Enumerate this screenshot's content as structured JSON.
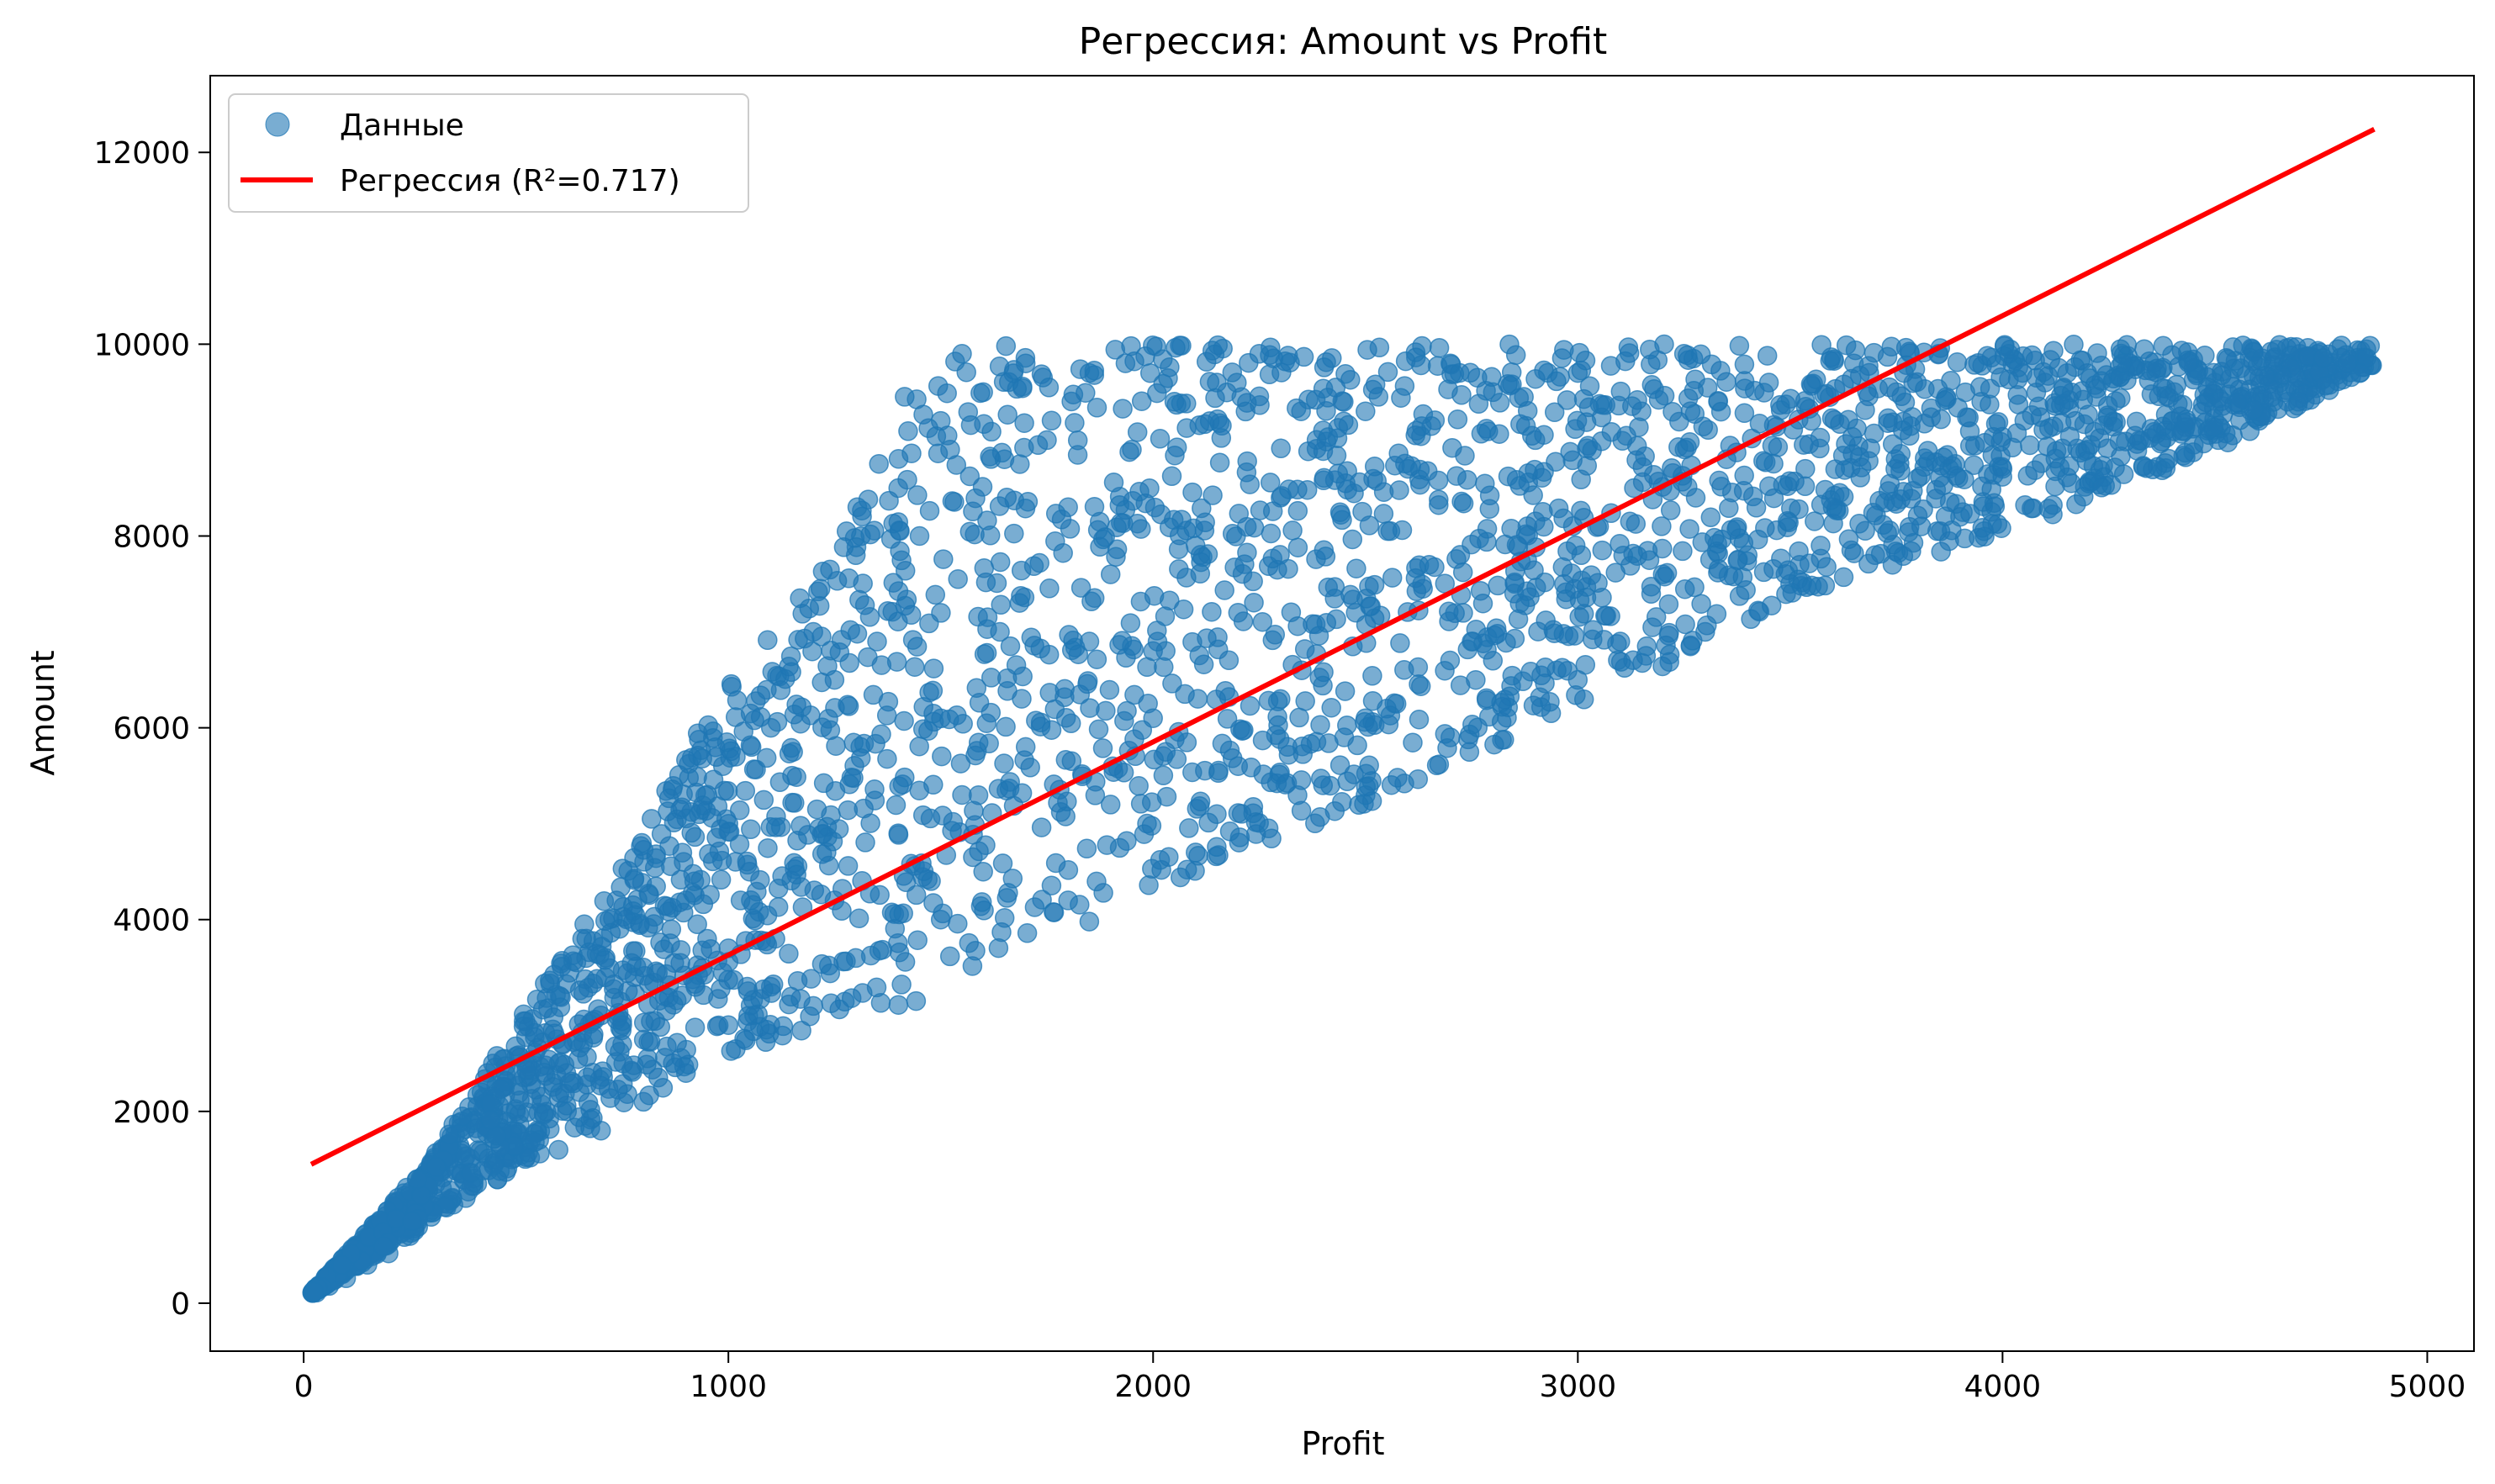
{
  "chart_data": {
    "type": "scatter",
    "title": "Регрессия: Amount vs Profit",
    "xlabel": "Profit",
    "ylabel": "Amount",
    "xlim": [
      -220,
      5110
    ],
    "ylim": [
      -500,
      12800
    ],
    "x_ticks": [
      0,
      1000,
      2000,
      3000,
      4000,
      5000
    ],
    "y_ticks": [
      0,
      2000,
      4000,
      6000,
      8000,
      10000,
      12000
    ],
    "grid": false,
    "legend_position": "top-left",
    "colors": {
      "points": "#1f77b4",
      "regression": "#ff0000"
    },
    "series": [
      {
        "name": "Данные",
        "type": "scatter",
        "points_approx_count": 3000,
        "envelope": {
          "x_max": 4870,
          "y_max": 10000,
          "upper_bound": [
            [
              20,
              120
            ],
            [
              100,
              500
            ],
            [
              300,
              1500
            ],
            [
              500,
              2900
            ],
            [
              800,
              4900
            ],
            [
              1000,
              6600
            ],
            [
              1200,
              7500
            ],
            [
              1400,
              9400
            ],
            [
              1550,
              10000
            ]
          ],
          "lower_bound": [
            [
              20,
              100
            ],
            [
              500,
              1400
            ],
            [
              1000,
              2600
            ],
            [
              1500,
              3200
            ],
            [
              2000,
              4300
            ],
            [
              2500,
              5200
            ],
            [
              3000,
              6200
            ],
            [
              3500,
              7300
            ],
            [
              4000,
              8000
            ],
            [
              4500,
              8900
            ],
            [
              4870,
              9750
            ]
          ]
        },
        "sample_points": [
          [
            30,
            110
          ],
          [
            60,
            180
          ],
          [
            100,
            260
          ],
          [
            150,
            400
          ],
          [
            200,
            520
          ],
          [
            250,
            700
          ],
          [
            300,
            900
          ],
          [
            350,
            1100
          ],
          [
            400,
            1300
          ],
          [
            450,
            1500
          ],
          [
            500,
            2000
          ],
          [
            550,
            1800
          ],
          [
            600,
            2500
          ],
          [
            650,
            2200
          ],
          [
            700,
            3000
          ],
          [
            750,
            2700
          ],
          [
            800,
            3500
          ],
          [
            850,
            3200
          ],
          [
            900,
            4200
          ],
          [
            950,
            3800
          ],
          [
            1000,
            5000
          ],
          [
            1050,
            4500
          ],
          [
            1100,
            6000
          ],
          [
            1150,
            5500
          ],
          [
            1200,
            7000
          ],
          [
            1250,
            6500
          ],
          [
            1300,
            7800
          ],
          [
            1350,
            6900
          ],
          [
            1400,
            8500
          ],
          [
            1450,
            8000
          ],
          [
            1500,
            9200
          ],
          [
            1550,
            9900
          ],
          [
            1600,
            9500
          ],
          [
            1650,
            8800
          ],
          [
            1700,
            9800
          ],
          [
            1750,
            9000
          ],
          [
            1800,
            8300
          ],
          [
            1850,
            9700
          ],
          [
            1900,
            7600
          ],
          [
            1950,
            8900
          ],
          [
            2000,
            6800
          ],
          [
            2050,
            9400
          ],
          [
            2100,
            7900
          ],
          [
            2150,
            9600
          ],
          [
            2200,
            7200
          ],
          [
            2250,
            9900
          ],
          [
            2300,
            8400
          ],
          [
            2350,
            6600
          ],
          [
            2400,
            9100
          ],
          [
            2450,
            5900
          ],
          [
            2500,
            9300
          ],
          [
            2550,
            6200
          ],
          [
            2600,
            8700
          ],
          [
            2650,
            7700
          ],
          [
            2700,
            9800
          ],
          [
            2750,
            6900
          ],
          [
            2800,
            9500
          ],
          [
            2850,
            7400
          ],
          [
            2900,
            9000
          ],
          [
            2950,
            6600
          ],
          [
            3000,
            9700
          ],
          [
            3050,
            8100
          ],
          [
            3100,
            6900
          ],
          [
            3150,
            9300
          ],
          [
            3200,
            7600
          ],
          [
            3250,
            9900
          ],
          [
            3300,
            7000
          ],
          [
            3350,
            8800
          ],
          [
            3400,
            7800
          ],
          [
            3450,
            9600
          ],
          [
            3500,
            7500
          ],
          [
            3550,
            9200
          ],
          [
            3600,
            8300
          ],
          [
            3650,
            9800
          ],
          [
            3700,
            7800
          ],
          [
            3750,
            9500
          ],
          [
            3800,
            8600
          ],
          [
            3850,
            9900
          ],
          [
            3900,
            8200
          ],
          [
            3950,
            9400
          ],
          [
            4000,
            8700
          ],
          [
            4100,
            9600
          ],
          [
            4200,
            8900
          ],
          [
            4300,
            9800
          ],
          [
            4400,
            9200
          ],
          [
            4500,
            9600
          ],
          [
            4600,
            9300
          ],
          [
            4700,
            9900
          ],
          [
            4800,
            9750
          ],
          [
            4870,
            9780
          ],
          [
            1200,
            3100
          ],
          [
            1500,
            4000
          ],
          [
            1800,
            4200
          ],
          [
            2100,
            4700
          ],
          [
            2400,
            5400
          ],
          [
            2700,
            5900
          ],
          [
            3000,
            6500
          ],
          [
            1000,
            2900
          ],
          [
            1300,
            3600
          ],
          [
            1600,
            4500
          ],
          [
            1900,
            5200
          ],
          [
            2200,
            5600
          ],
          [
            2500,
            6100
          ],
          [
            2800,
            6700
          ],
          [
            700,
            1800
          ],
          [
            900,
            2400
          ],
          [
            1100,
            3300
          ],
          [
            1400,
            4900
          ],
          [
            1700,
            5800
          ],
          [
            2000,
            6100
          ],
          [
            2300,
            6300
          ],
          [
            600,
            1600
          ],
          [
            800,
            2100
          ],
          [
            1000,
            3700
          ],
          [
            1250,
            4200
          ],
          [
            1550,
            5300
          ],
          [
            1850,
            6900
          ],
          [
            2150,
            5100
          ]
        ]
      },
      {
        "name": "Регрессия (R²=0.717)",
        "type": "line",
        "x": [
          23,
          4870
        ],
        "y": [
          1460,
          12230
        ]
      }
    ]
  }
}
